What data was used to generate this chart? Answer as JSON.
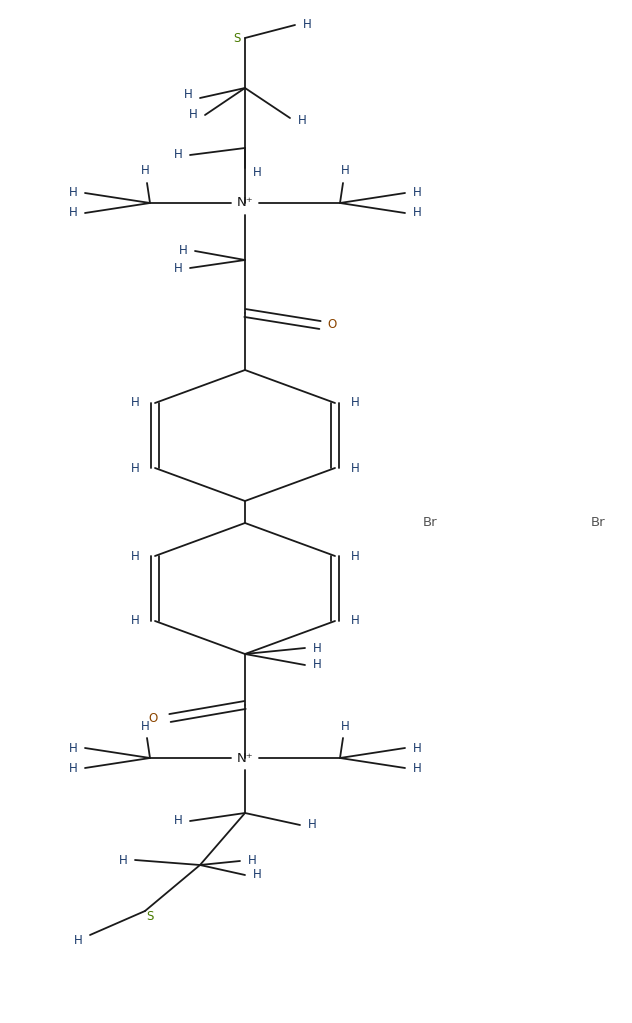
{
  "bg_color": "#ffffff",
  "line_color": "#1a1a1a",
  "H_color": "#1a3a6b",
  "N_color": "#1a1a1a",
  "O_color": "#8B4500",
  "S_color": "#4a7a00",
  "Br_color": "#555555",
  "bond_lw": 1.3,
  "font_size": 8.5,
  "fig_width": 6.32,
  "fig_height": 10.23,
  "dpi": 100,
  "Br1": [
    0.68,
    0.49
  ],
  "Br2": [
    0.955,
    0.49
  ]
}
